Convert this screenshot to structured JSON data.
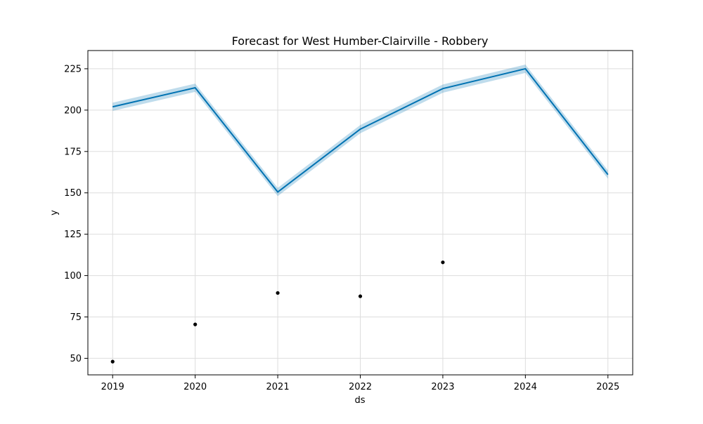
{
  "chart_data": {
    "type": "line",
    "title": "Forecast for West Humber-Clairville - Robbery",
    "xlabel": "ds",
    "ylabel": "y",
    "x_ticks": [
      "2019",
      "2020",
      "2021",
      "2022",
      "2023",
      "2024",
      "2025"
    ],
    "y_ticks": [
      50,
      75,
      100,
      125,
      150,
      175,
      200,
      225
    ],
    "xlim": [
      2018.7,
      2025.3
    ],
    "ylim": [
      40,
      236
    ],
    "grid": true,
    "colors": {
      "forecast_line": "#0072B2",
      "uncertainty_band": "#0072B2",
      "actual_points": "#000000",
      "grid": "#dddddd"
    },
    "series": [
      {
        "role": "forecast",
        "kind": "line",
        "x": [
          2019,
          2020,
          2021,
          2022,
          2023,
          2024,
          2025
        ],
        "y": [
          202,
          213.5,
          150.5,
          188.5,
          213,
          225,
          161
        ],
        "y_lower": [
          199.5,
          211,
          148,
          186,
          210.5,
          222.5,
          158.5
        ],
        "y_upper": [
          204.5,
          216,
          153,
          191,
          215.5,
          227.5,
          163.5
        ]
      },
      {
        "role": "actual",
        "kind": "scatter",
        "x": [
          2019,
          2020,
          2021,
          2022,
          2023
        ],
        "y": [
          48,
          70.5,
          89.5,
          87.5,
          108
        ]
      }
    ]
  }
}
